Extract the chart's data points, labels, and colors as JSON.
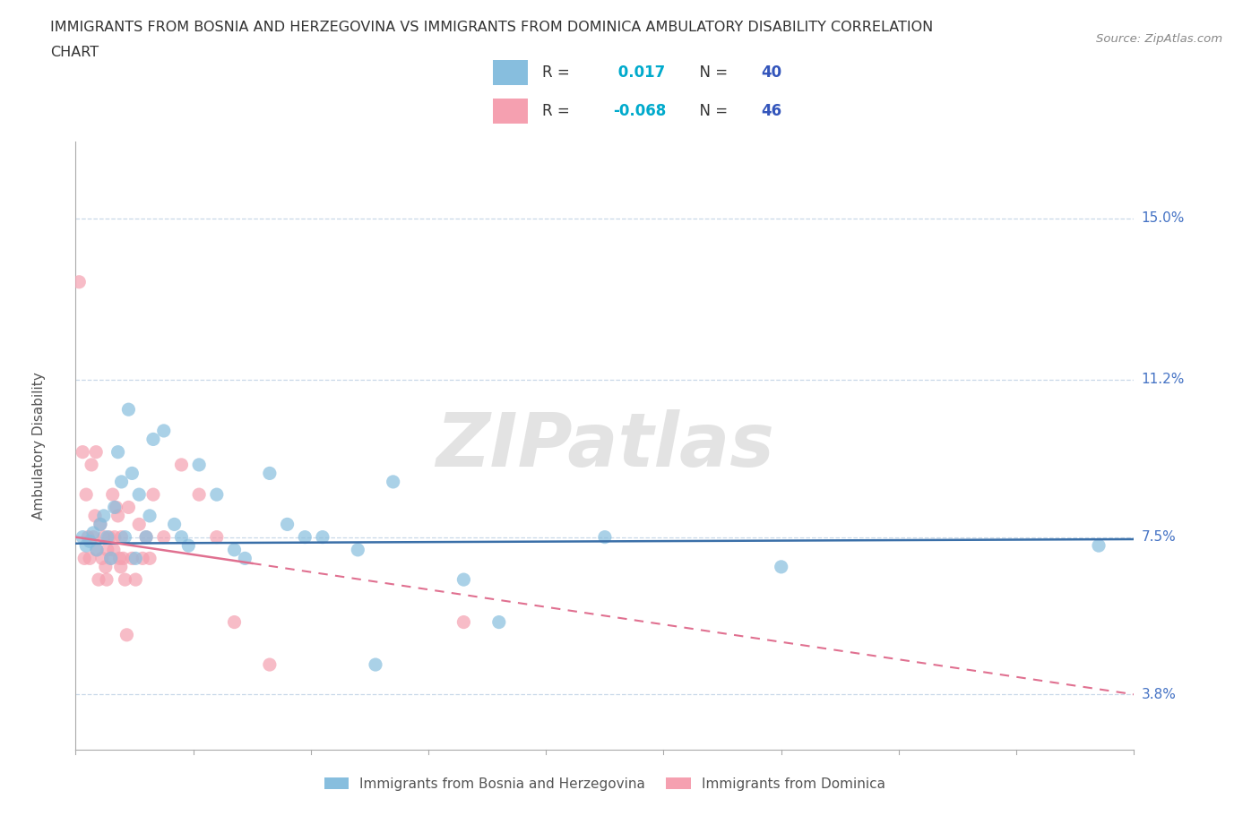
{
  "title_line1": "IMMIGRANTS FROM BOSNIA AND HERZEGOVINA VS IMMIGRANTS FROM DOMINICA AMBULATORY DISABILITY CORRELATION",
  "title_line2": "CHART",
  "source_text": "Source: ZipAtlas.com",
  "ylabel_ticks": [
    3.8,
    7.5,
    11.2,
    15.0
  ],
  "xlim": [
    0.0,
    30.0
  ],
  "ylim": [
    2.5,
    16.8
  ],
  "bosnia_color": "#87BEDE",
  "dominica_color": "#F5A0B0",
  "bosnia_line_color": "#3A6FA8",
  "dominica_line_color": "#E07090",
  "bosnia_R": 0.017,
  "bosnia_N": 40,
  "dominica_R": -0.068,
  "dominica_N": 46,
  "rv_color": "#00AACC",
  "nv_color": "#3355BB",
  "watermark_text": "ZIPatlas",
  "bosnia_scatter_x": [
    0.2,
    0.3,
    0.4,
    0.5,
    0.6,
    0.7,
    0.8,
    0.9,
    1.0,
    1.1,
    1.2,
    1.3,
    1.5,
    1.6,
    1.8,
    2.0,
    2.2,
    2.5,
    2.8,
    3.0,
    3.5,
    4.0,
    4.5,
    5.5,
    6.0,
    7.0,
    8.0,
    9.0,
    11.0,
    29.0,
    1.4,
    1.7,
    2.1,
    3.2,
    4.8,
    6.5,
    8.5,
    12.0,
    15.0,
    20.0
  ],
  "bosnia_scatter_y": [
    7.5,
    7.3,
    7.4,
    7.6,
    7.2,
    7.8,
    8.0,
    7.5,
    7.0,
    8.2,
    9.5,
    8.8,
    10.5,
    9.0,
    8.5,
    7.5,
    9.8,
    10.0,
    7.8,
    7.5,
    9.2,
    8.5,
    7.2,
    9.0,
    7.8,
    7.5,
    7.2,
    8.8,
    6.5,
    7.3,
    7.5,
    7.0,
    8.0,
    7.3,
    7.0,
    7.5,
    4.5,
    5.5,
    7.5,
    6.8
  ],
  "dominica_scatter_x": [
    0.1,
    0.2,
    0.3,
    0.35,
    0.4,
    0.45,
    0.5,
    0.55,
    0.6,
    0.65,
    0.7,
    0.75,
    0.8,
    0.85,
    0.9,
    0.95,
    1.0,
    1.05,
    1.1,
    1.15,
    1.2,
    1.25,
    1.3,
    1.35,
    1.4,
    1.45,
    1.5,
    1.6,
    1.7,
    1.8,
    1.9,
    2.0,
    2.1,
    2.2,
    2.5,
    3.0,
    3.5,
    4.0,
    4.5,
    5.5,
    0.25,
    0.58,
    0.88,
    1.08,
    1.28,
    11.0
  ],
  "dominica_scatter_y": [
    13.5,
    9.5,
    8.5,
    7.5,
    7.0,
    9.2,
    7.5,
    8.0,
    7.2,
    6.5,
    7.8,
    7.0,
    7.5,
    6.8,
    7.2,
    7.5,
    7.0,
    8.5,
    7.5,
    8.2,
    8.0,
    7.0,
    7.5,
    7.0,
    6.5,
    5.2,
    8.2,
    7.0,
    6.5,
    7.8,
    7.0,
    7.5,
    7.0,
    8.5,
    7.5,
    9.2,
    8.5,
    7.5,
    5.5,
    4.5,
    7.0,
    9.5,
    6.5,
    7.2,
    6.8,
    5.5
  ],
  "grid_color": "#C8D8E8",
  "grid_style": "--",
  "spine_color": "#AAAAAA",
  "label_color": "#555555",
  "ytick_color": "#4472C4",
  "xtick_color": "#555555"
}
